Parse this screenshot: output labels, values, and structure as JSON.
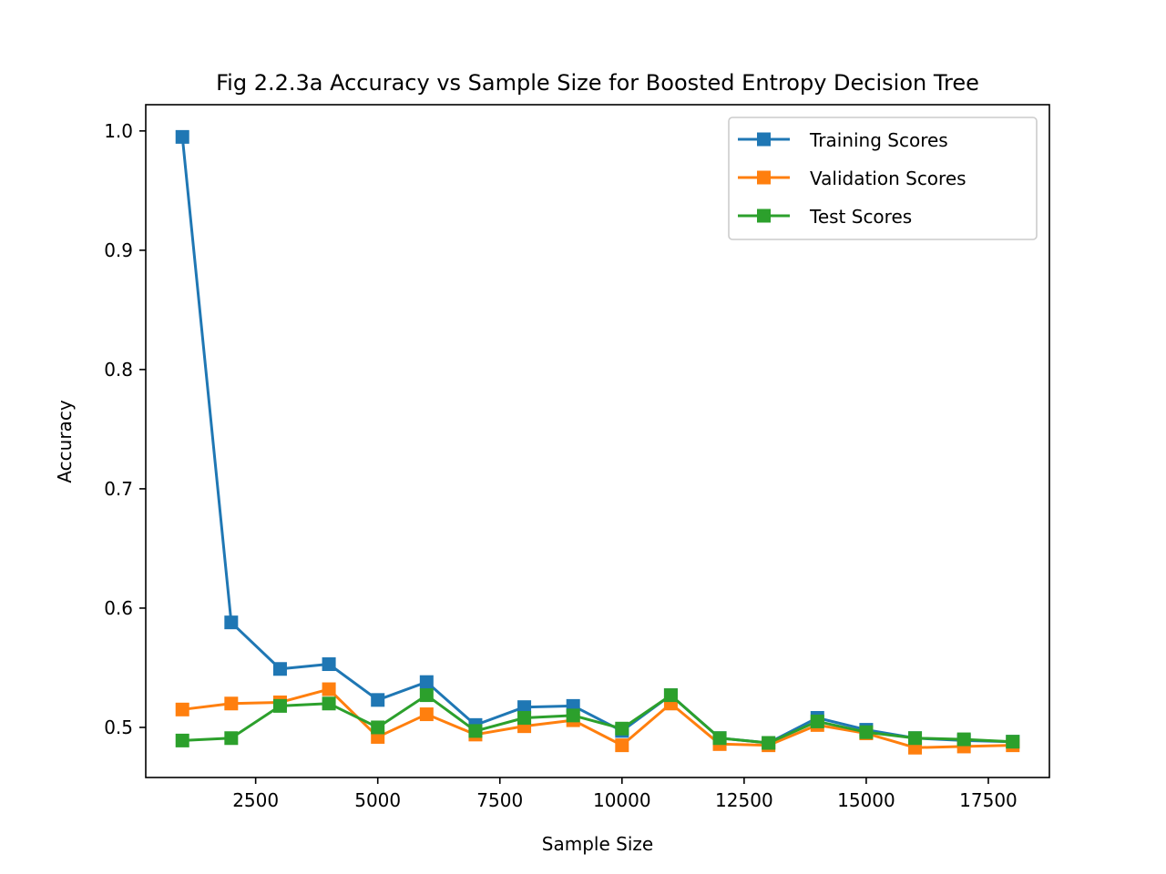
{
  "chart_data": {
    "type": "line",
    "title": "Fig 2.2.3a Accuracy vs Sample Size for Boosted Entropy Decision Tree",
    "xlabel": "Sample Size",
    "ylabel": "Accuracy",
    "xlim": [
      250,
      18750
    ],
    "ylim": [
      0.458,
      1.022
    ],
    "xticks": [
      2500,
      5000,
      7500,
      10000,
      12500,
      15000,
      17500
    ],
    "yticks": [
      0.5,
      0.6,
      0.7,
      0.8,
      0.9,
      1.0
    ],
    "xtick_labels": [
      "2500",
      "5000",
      "7500",
      "10000",
      "12500",
      "15000",
      "17500"
    ],
    "ytick_labels": [
      "0.5",
      "0.6",
      "0.7",
      "0.8",
      "0.9",
      "1.0"
    ],
    "legend_position": "top-right",
    "grid": false,
    "x": [
      1000,
      2000,
      3000,
      4000,
      5000,
      6000,
      7000,
      8000,
      9000,
      10000,
      11000,
      12000,
      13000,
      14000,
      15000,
      16000,
      17000,
      18000
    ],
    "series": [
      {
        "name": "Training Scores",
        "color": "#1f77b4",
        "values": [
          0.995,
          0.588,
          0.549,
          0.553,
          0.523,
          0.538,
          0.502,
          0.517,
          0.518,
          0.497,
          0.527,
          0.491,
          0.487,
          0.508,
          0.498,
          0.491,
          0.489,
          0.488
        ]
      },
      {
        "name": "Validation Scores",
        "color": "#ff7f0e",
        "values": [
          0.515,
          0.52,
          0.521,
          0.532,
          0.492,
          0.511,
          0.494,
          0.501,
          0.506,
          0.485,
          0.52,
          0.486,
          0.485,
          0.502,
          0.495,
          0.483,
          0.484,
          0.485
        ]
      },
      {
        "name": "Test Scores",
        "color": "#2ca02c",
        "values": [
          0.489,
          0.491,
          0.518,
          0.52,
          0.5,
          0.527,
          0.497,
          0.508,
          0.51,
          0.499,
          0.527,
          0.491,
          0.487,
          0.505,
          0.496,
          0.491,
          0.49,
          0.488
        ]
      }
    ]
  }
}
